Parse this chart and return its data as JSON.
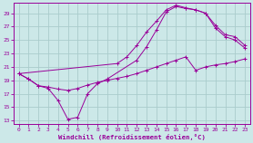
{
  "xlabel": "Windchill (Refroidissement éolien,°C)",
  "bg_color": "#cce8e8",
  "grid_color": "#aacccc",
  "line_color": "#990099",
  "xlim": [
    -0.5,
    23.5
  ],
  "ylim": [
    12.5,
    30.5
  ],
  "xticks": [
    0,
    1,
    2,
    3,
    4,
    5,
    6,
    7,
    8,
    9,
    10,
    11,
    12,
    13,
    14,
    15,
    16,
    17,
    18,
    19,
    20,
    21,
    22,
    23
  ],
  "yticks": [
    13,
    15,
    17,
    19,
    21,
    23,
    25,
    27,
    29
  ],
  "curve1_x": [
    0,
    1,
    2,
    3,
    4,
    5,
    6,
    7,
    8,
    9,
    10,
    11,
    12,
    13,
    14,
    15,
    16,
    17,
    18,
    19,
    20,
    21,
    22,
    23
  ],
  "curve1_y": [
    20,
    19.2,
    18.2,
    18,
    17.7,
    17.5,
    17.8,
    18.3,
    18.7,
    19,
    19.3,
    19.6,
    20,
    20.5,
    21,
    21.5,
    22,
    22.5,
    20.5,
    21,
    21.3,
    21.5,
    21.8,
    22.2
  ],
  "curve2_x": [
    0,
    1,
    2,
    3,
    4,
    5,
    6,
    7,
    8,
    9,
    12,
    13,
    14,
    15,
    16,
    17,
    18,
    19,
    20,
    21,
    22,
    23
  ],
  "curve2_y": [
    20,
    19.2,
    18.2,
    17.8,
    16,
    13.2,
    13.5,
    17,
    18.5,
    19.2,
    22,
    24,
    26.5,
    29.2,
    30,
    29.7,
    29.5,
    29,
    26.8,
    25.5,
    25,
    23.8
  ],
  "curve3_x": [
    0,
    10,
    11,
    12,
    13,
    14,
    15,
    16,
    17,
    18,
    19,
    20,
    21,
    22,
    23
  ],
  "curve3_y": [
    20,
    21.5,
    22.5,
    24.2,
    26.2,
    27.8,
    29.5,
    30.2,
    29.8,
    29.5,
    29,
    27.2,
    25.8,
    25.5,
    24.2
  ]
}
